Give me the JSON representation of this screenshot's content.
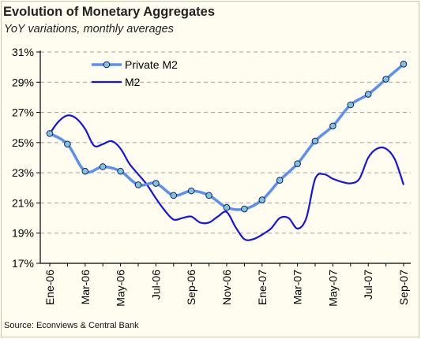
{
  "title": "Evolution of Monetary Aggregates",
  "subtitle": "YoY variations, monthly averages",
  "source": "Source: Econviews & Central Bank",
  "colors": {
    "private_m2_line": "#5b8ff0",
    "private_m2_marker": "#7ec6d2",
    "m2_line": "#1414e6",
    "grid": "#a0a0a0"
  },
  "chart_data": {
    "type": "line",
    "ylim": [
      17,
      31
    ],
    "y_ticks": [
      "17%",
      "19%",
      "21%",
      "23%",
      "25%",
      "27%",
      "29%",
      "31%"
    ],
    "y_tick_values": [
      17,
      19,
      21,
      23,
      25,
      27,
      29,
      31
    ],
    "x_tick_labels": [
      "Ene-06",
      "Mar-06",
      "May-06",
      "Jul-06",
      "Sep-06",
      "Nov-06",
      "Ene-07",
      "Mar-07",
      "May-07",
      "Jul-07",
      "Sep-07"
    ],
    "x_tick_index": [
      0,
      2,
      4,
      6,
      8,
      10,
      12,
      14,
      16,
      18,
      20
    ],
    "grid": "horizontal dashed",
    "legend_position": "top-left",
    "series": [
      {
        "name": "Private M2",
        "style": "line-with-markers",
        "x_index": [
          0,
          1,
          2,
          3,
          4,
          5,
          6,
          7,
          8,
          9,
          10,
          11,
          12,
          13,
          14,
          15,
          16,
          17,
          18,
          19,
          20
        ],
        "values": [
          25.6,
          24.9,
          23.1,
          23.4,
          23.1,
          22.2,
          22.3,
          21.5,
          21.8,
          21.5,
          20.7,
          20.6,
          21.2,
          22.5,
          23.6,
          25.1,
          26.1,
          27.5,
          28.2,
          29.2,
          30.2
        ]
      },
      {
        "name": "M2",
        "style": "line",
        "x_index": [
          0,
          0.5,
          1,
          1.5,
          2,
          2.5,
          3,
          3.5,
          4,
          4.5,
          5,
          5.5,
          6,
          6.5,
          7,
          7.5,
          8,
          8.5,
          9,
          9.5,
          10,
          10.5,
          11,
          11.5,
          12,
          12.5,
          13,
          13.5,
          14,
          14.5,
          15,
          15.5,
          16,
          16.5,
          17,
          17.5,
          18,
          18.5,
          19,
          19.5,
          20
        ],
        "values": [
          25.6,
          26.4,
          26.8,
          26.6,
          25.9,
          24.8,
          24.9,
          25.1,
          24.6,
          23.6,
          22.9,
          22.2,
          21.3,
          20.5,
          19.9,
          20.0,
          20.1,
          19.7,
          19.7,
          20.1,
          20.4,
          19.4,
          18.6,
          18.6,
          18.9,
          19.3,
          20.0,
          20.0,
          19.3,
          20.0,
          22.6,
          22.9,
          22.6,
          22.4,
          22.3,
          22.6,
          24.0,
          24.6,
          24.6,
          23.9,
          22.2
        ]
      }
    ]
  }
}
